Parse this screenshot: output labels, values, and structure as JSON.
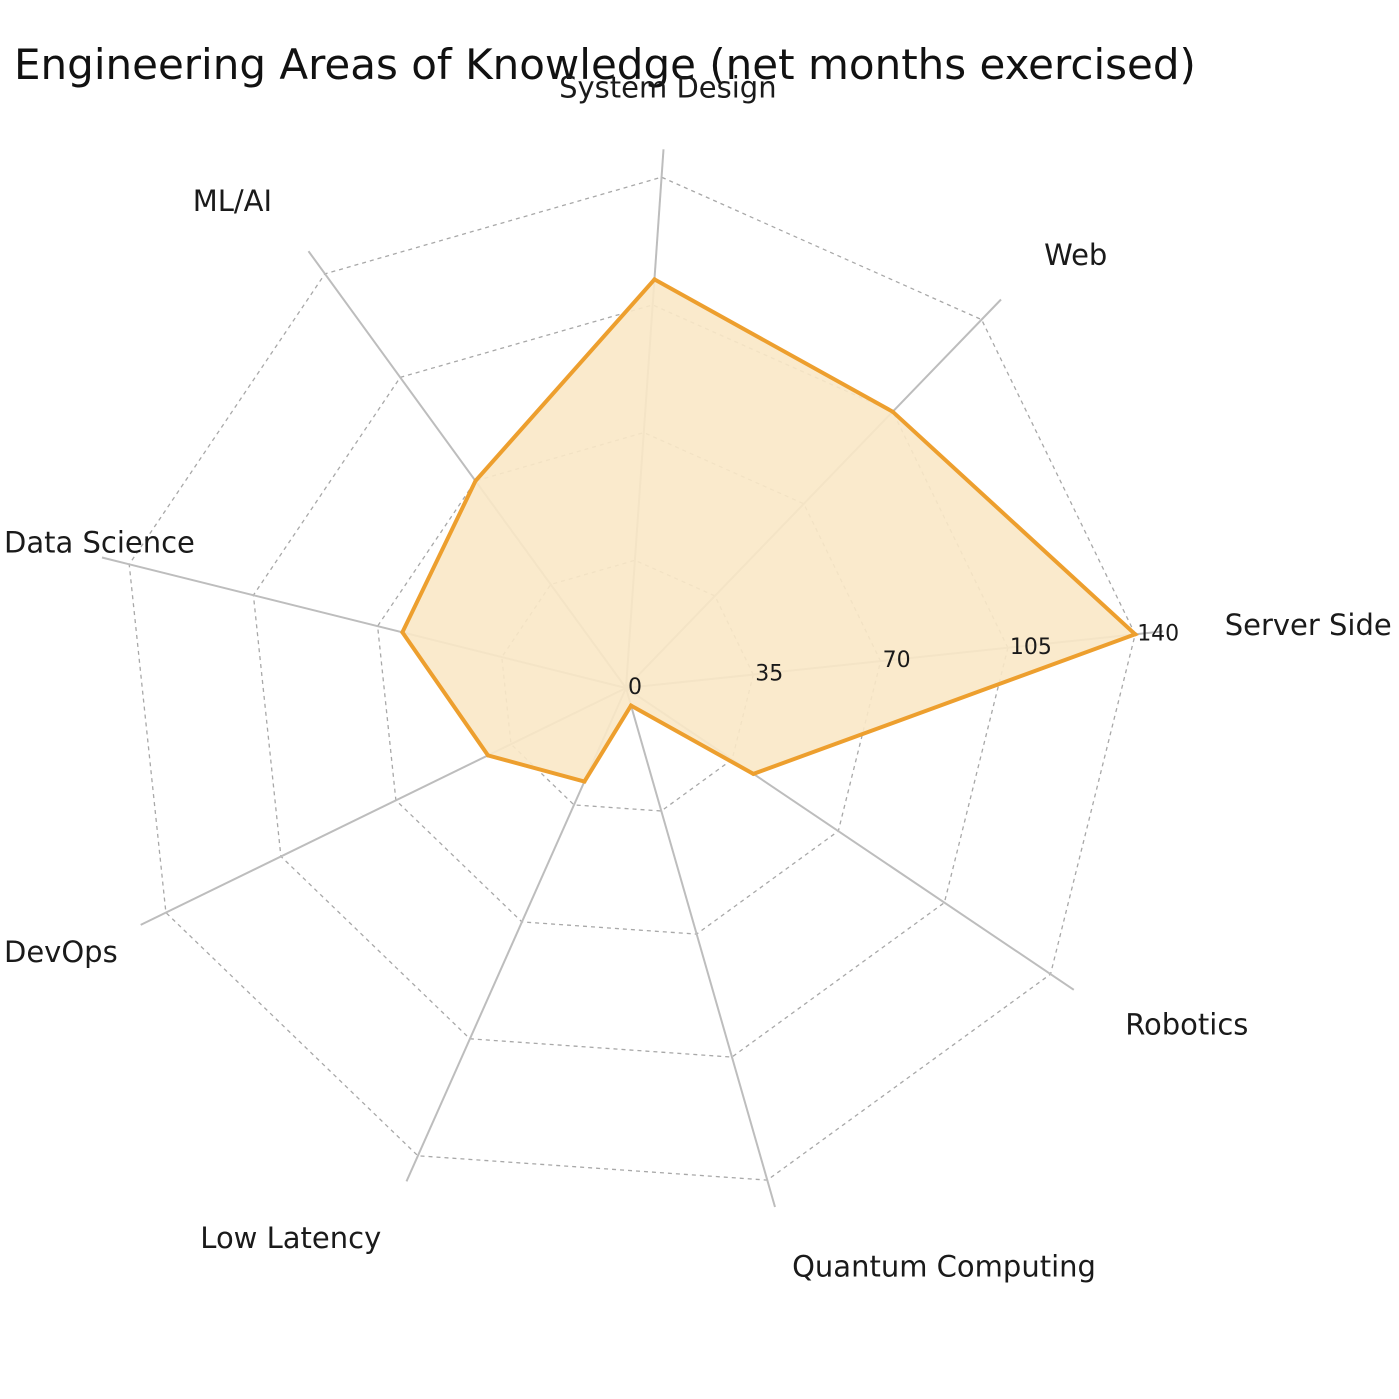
{
  "chart_data": {
    "type": "radar",
    "title": "Engineering Areas of Knowledge (net months exercised)",
    "categories": [
      "Server Side",
      "Web",
      "System Design",
      "ML/AI",
      "Data Science",
      "DevOps",
      "Low Latency",
      "Quantum Computing",
      "Robotics"
    ],
    "values": [
      140,
      105,
      112,
      70,
      63,
      42,
      28,
      5,
      42
    ],
    "rlim": [
      0,
      140
    ],
    "rticks": [
      0,
      35,
      70,
      105,
      140
    ],
    "rtick_labels": [
      "0",
      "35",
      "70",
      "105",
      "140"
    ],
    "grid": true,
    "colors": {
      "line": "#ED9F2E",
      "fill": "#FAE8C6",
      "axis": "#BDBDBD",
      "grid": "#A8A8A8"
    }
  }
}
